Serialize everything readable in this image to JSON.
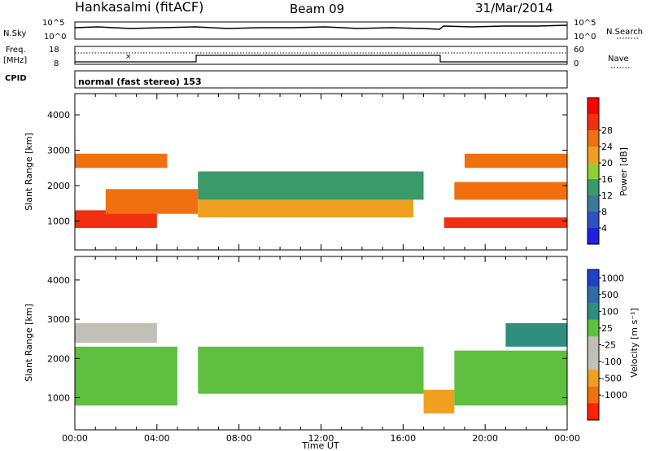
{
  "header": {
    "station": "Hankasalmi (fitACF)",
    "beam": "Beam 09",
    "date": "31/Mar/2014"
  },
  "status_panels": {
    "nsky_label": "N.Sky",
    "nsky_ticks": [
      "10^5",
      "10^0"
    ],
    "nsearch_label": "N.Search",
    "nsearch_ticks": [
      "10^5",
      "10^0"
    ],
    "freq_label_top": "Freq.",
    "freq_label_bottom": "[MHz]",
    "freq_ticks": [
      "18",
      "8"
    ],
    "nave_label": "Nave",
    "nave_ticks": [
      "60",
      "0"
    ],
    "cpid_label": "CPID",
    "cpid_text": "normal (fast stereo) 153"
  },
  "colors": {
    "power_scale": [
      "#2020e0",
      "#3050c0",
      "#3a7a9a",
      "#3a9a6a",
      "#8fd03a",
      "#f0a020",
      "#f07010",
      "#f03010",
      "#ff0000"
    ],
    "velocity_scale": [
      "#2040c8",
      "#2f6ca8",
      "#2f8f7f",
      "#5fc040",
      "#bebeb6",
      "#c0c0b8",
      "#f0a020",
      "#f07010",
      "#ff2000"
    ]
  },
  "chart_data": [
    {
      "type": "heatmap",
      "quantity": "power",
      "ylabel": "Slant Range [km]",
      "ylim": [
        180,
        4600
      ],
      "yticks": [
        "1000",
        "2000",
        "3000",
        "4000"
      ],
      "xlim_hours": [
        0,
        24
      ],
      "colorbar_label": "Power [dB]",
      "colorbar_ticks": [
        "4",
        "8",
        "12",
        "16",
        "20",
        "24",
        "28"
      ],
      "bands": [
        {
          "name": "",
          "start_hour": 0.0,
          "end_hour": 4.0,
          "range_km": [
            800,
            1300
          ],
          "level": 28
        },
        {
          "name": "",
          "start_hour": 1.5,
          "end_hour": 6.0,
          "range_km": [
            1200,
            1900
          ],
          "level": 24
        },
        {
          "name": "",
          "start_hour": 0.0,
          "end_hour": 4.5,
          "range_km": [
            2500,
            2900
          ],
          "level": 24
        },
        {
          "name": "",
          "start_hour": 6.0,
          "end_hour": 16.5,
          "range_km": [
            1100,
            1600
          ],
          "level": 20
        },
        {
          "name": "",
          "start_hour": 6.0,
          "end_hour": 17.0,
          "range_km": [
            1600,
            2400
          ],
          "level": 12
        },
        {
          "name": "",
          "start_hour": 18.0,
          "end_hour": 24.0,
          "range_km": [
            800,
            1100
          ],
          "level": 28
        },
        {
          "name": "",
          "start_hour": 18.5,
          "end_hour": 24.0,
          "range_km": [
            1600,
            2100
          ],
          "level": 24
        },
        {
          "name": "",
          "start_hour": 19.0,
          "end_hour": 24.0,
          "range_km": [
            2500,
            2900
          ],
          "level": 24
        }
      ]
    },
    {
      "type": "heatmap",
      "quantity": "velocity",
      "ylabel": "Slant Range [km]",
      "ylim": [
        180,
        4600
      ],
      "yticks": [
        "1000",
        "2000",
        "3000",
        "4000"
      ],
      "xlabel": "Time UT",
      "xticks": [
        "00:00",
        "04:00",
        "08:00",
        "12:00",
        "16:00",
        "20:00",
        "00:00"
      ],
      "xlim_hours": [
        0,
        24
      ],
      "colorbar_label": "Velocity [m s⁻¹]",
      "colorbar_ticks": [
        "1000",
        "500",
        "100",
        "25",
        "-25",
        "-100",
        "-500",
        "-1000"
      ],
      "bands": [
        {
          "name": "",
          "start_hour": 0.0,
          "end_hour": 5.0,
          "range_km": [
            800,
            2300
          ],
          "level": 0
        },
        {
          "name": "",
          "start_hour": 0.0,
          "end_hour": 4.0,
          "range_km": [
            2400,
            2900
          ],
          "level": -100
        },
        {
          "name": "",
          "start_hour": 6.0,
          "end_hour": 17.0,
          "range_km": [
            1100,
            2300
          ],
          "level": 0
        },
        {
          "name": "",
          "start_hour": 17.0,
          "end_hour": 18.5,
          "range_km": [
            600,
            1200
          ],
          "level": -500
        },
        {
          "name": "",
          "start_hour": 18.5,
          "end_hour": 24.0,
          "range_km": [
            800,
            2200
          ],
          "level": 0
        },
        {
          "name": "",
          "start_hour": 21.0,
          "end_hour": 24.0,
          "range_km": [
            2300,
            2900
          ],
          "level": 100
        }
      ]
    }
  ]
}
